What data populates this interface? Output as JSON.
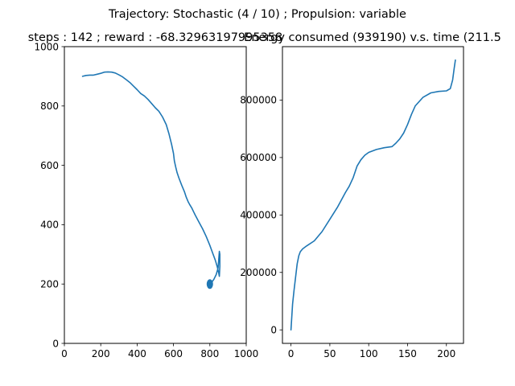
{
  "suptitle": "Trajectory: Stochastic (4 / 10) ; Propulsion: variable",
  "colors": {
    "line": "#1f77b4",
    "axes": "#000000",
    "background": "#ffffff"
  },
  "chart_data": [
    {
      "type": "line",
      "title": "steps : 142 ; reward : -68.32963197995358",
      "xlabel": "",
      "ylabel": "",
      "xlim": [
        0,
        1000
      ],
      "ylim": [
        0,
        1000
      ],
      "xticks": [
        0,
        200,
        400,
        600,
        800,
        1000
      ],
      "yticks": [
        0,
        200,
        400,
        600,
        800,
        1000
      ],
      "grid": false,
      "series": [
        {
          "x": [
            100,
            120,
            140,
            160,
            180,
            200,
            220,
            240,
            260,
            280,
            300,
            320,
            340,
            360,
            380,
            400,
            420,
            440,
            460,
            480,
            500,
            520,
            540,
            560,
            575,
            590,
            600,
            605,
            612,
            620,
            630,
            645,
            660,
            670,
            680,
            690,
            700,
            710,
            720,
            740,
            760,
            780,
            800,
            815,
            830,
            840,
            848,
            852,
            855,
            855,
            852,
            845,
            835,
            822,
            812,
            806,
            803
          ],
          "y": [
            900,
            903,
            904,
            904,
            907,
            910,
            914,
            915,
            914,
            911,
            905,
            898,
            889,
            879,
            867,
            855,
            842,
            834,
            822,
            808,
            794,
            782,
            763,
            737,
            707,
            670,
            640,
            615,
            595,
            575,
            557,
            533,
            511,
            493,
            478,
            467,
            457,
            444,
            432,
            409,
            386,
            360,
            330,
            305,
            280,
            260,
            240,
            226,
            260,
            300,
            310,
            254,
            232,
            216,
            207,
            205,
            212
          ]
        }
      ],
      "marker_cluster": {
        "x": 800,
        "y": 200
      }
    },
    {
      "type": "line",
      "title": "Energy consumed (939190) v.s. time (211.5",
      "xlabel": "",
      "ylabel": "",
      "xlim": [
        -11,
        222
      ],
      "ylim": [
        -47000,
        986000
      ],
      "xticks": [
        0,
        50,
        100,
        150,
        200
      ],
      "yticks": [
        0,
        200000,
        400000,
        600000,
        800000
      ],
      "grid": false,
      "series": [
        {
          "x": [
            0,
            2,
            4,
            6,
            8,
            10,
            12,
            15,
            20,
            30,
            40,
            50,
            60,
            70,
            75,
            80,
            85,
            90,
            95,
            100,
            110,
            120,
            130,
            135,
            140,
            145,
            150,
            155,
            160,
            170,
            180,
            190,
            200,
            205,
            208,
            210,
            211.5
          ],
          "y": [
            0,
            90000,
            140000,
            185000,
            230000,
            258000,
            272000,
            282000,
            292000,
            310000,
            342000,
            385000,
            428000,
            478000,
            500000,
            530000,
            570000,
            592000,
            608000,
            618000,
            628000,
            634000,
            638000,
            650000,
            665000,
            685000,
            715000,
            750000,
            780000,
            810000,
            825000,
            830000,
            832000,
            840000,
            870000,
            910000,
            939190
          ]
        }
      ]
    }
  ]
}
